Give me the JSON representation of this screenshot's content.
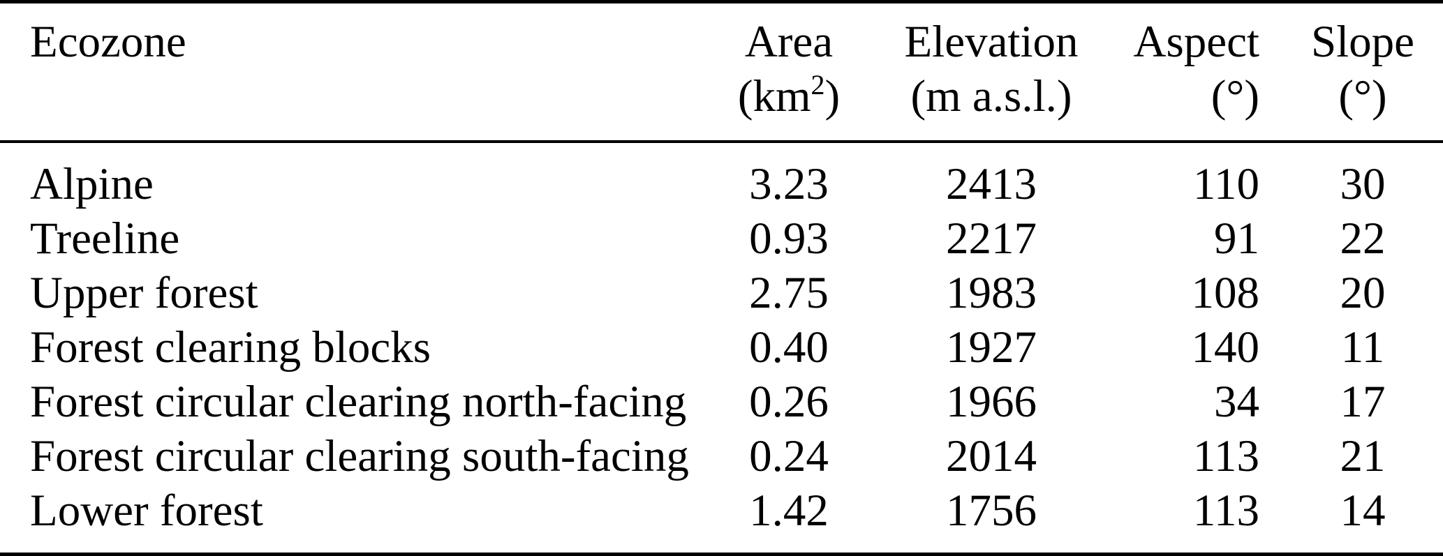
{
  "table": {
    "header": {
      "ecozone": {
        "label": "Ecozone"
      },
      "area": {
        "label": "Area",
        "unit_open": "(km",
        "unit_sup": "2",
        "unit_close": ")"
      },
      "elevation": {
        "label": "Elevation",
        "unit": "(m a.s.l.)"
      },
      "aspect": {
        "label": "Aspect",
        "unit": "(°)"
      },
      "slope": {
        "label": "Slope",
        "unit": "(°)"
      }
    },
    "rows": [
      {
        "ecozone": "Alpine",
        "area": "3.23",
        "elevation": "2413",
        "aspect": "110",
        "slope": "30"
      },
      {
        "ecozone": "Treeline",
        "area": "0.93",
        "elevation": "2217",
        "aspect": "91",
        "slope": "22"
      },
      {
        "ecozone": "Upper forest",
        "area": "2.75",
        "elevation": "1983",
        "aspect": "108",
        "slope": "20"
      },
      {
        "ecozone": "Forest clearing blocks",
        "area": "0.40",
        "elevation": "1927",
        "aspect": "140",
        "slope": "11"
      },
      {
        "ecozone": "Forest circular clearing north-facing",
        "area": "0.26",
        "elevation": "1966",
        "aspect": "34",
        "slope": "17"
      },
      {
        "ecozone": "Forest circular clearing south-facing",
        "area": "0.24",
        "elevation": "2014",
        "aspect": "113",
        "slope": "21"
      },
      {
        "ecozone": "Lower forest",
        "area": "1.42",
        "elevation": "1756",
        "aspect": "113",
        "slope": "14"
      }
    ]
  },
  "colors": {
    "text": "#000000",
    "background": "#ffffff",
    "rule": "#000000"
  }
}
